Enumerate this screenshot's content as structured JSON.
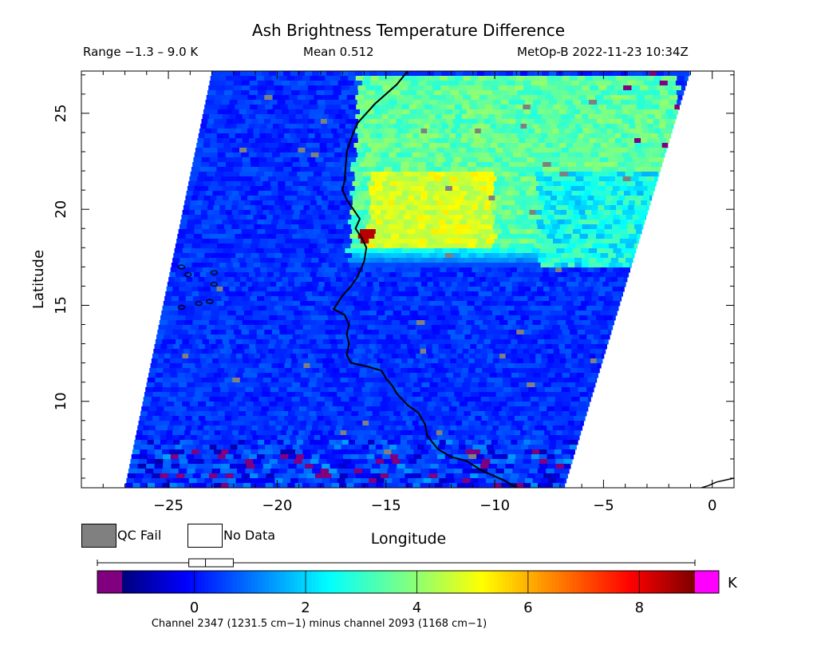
{
  "header": {
    "title": "Ash Brightness Temperature Difference",
    "range": "Range −1.3 – 9.0 K",
    "mean": "Mean 0.512",
    "satellite": "MetOp-B 2022-11-23 10:34Z"
  },
  "legend": {
    "qc_fail_label": "QC Fail",
    "qc_fail_color": "#808080",
    "no_data_label": "No Data",
    "no_data_color": "#ffffff"
  },
  "colorbar": {
    "unit": "K",
    "caption": "Channel 2347 (1231.5 cm−1) minus channel 2093 (1168 cm−1)",
    "ticks": [
      0,
      2,
      4,
      6,
      8
    ],
    "vmin": -1.3,
    "vmax": 9.0,
    "under_color": "#800080",
    "over_color": "#ff00ff",
    "box_stats": {
      "min": -1.3,
      "q1": -0.1,
      "median": 0.2,
      "q3": 0.7,
      "max": 9.0
    }
  },
  "chart_data": {
    "type": "heatmap",
    "title": "Ash Brightness Temperature Difference",
    "xlabel": "Longitude",
    "ylabel": "Latitude",
    "xlim": [
      -29,
      1
    ],
    "ylim": [
      5.5,
      27.2
    ],
    "x_ticks": [
      -25,
      -20,
      -15,
      -10,
      -5,
      0
    ],
    "y_ticks": [
      10,
      15,
      20,
      25
    ],
    "value_units": "K",
    "swath_corners": {
      "top_left": [
        -23,
        27.2
      ],
      "top_right": [
        -1,
        27.2
      ],
      "bottom_right": [
        -6.8,
        5.5
      ],
      "bottom_left": [
        -27,
        5.5
      ]
    },
    "features": [
      {
        "name": "ash plume core",
        "lon_range": [
          -16,
          -10
        ],
        "lat_range": [
          18,
          22
        ],
        "value": 4.8
      },
      {
        "name": "ash plume extent",
        "lon_range": [
          -16.5,
          -1.5
        ],
        "lat_range": [
          17,
          27
        ],
        "value": 3.3
      },
      {
        "name": "background",
        "value": 0.3
      }
    ],
    "grid": false,
    "legend": "bottom-left"
  }
}
